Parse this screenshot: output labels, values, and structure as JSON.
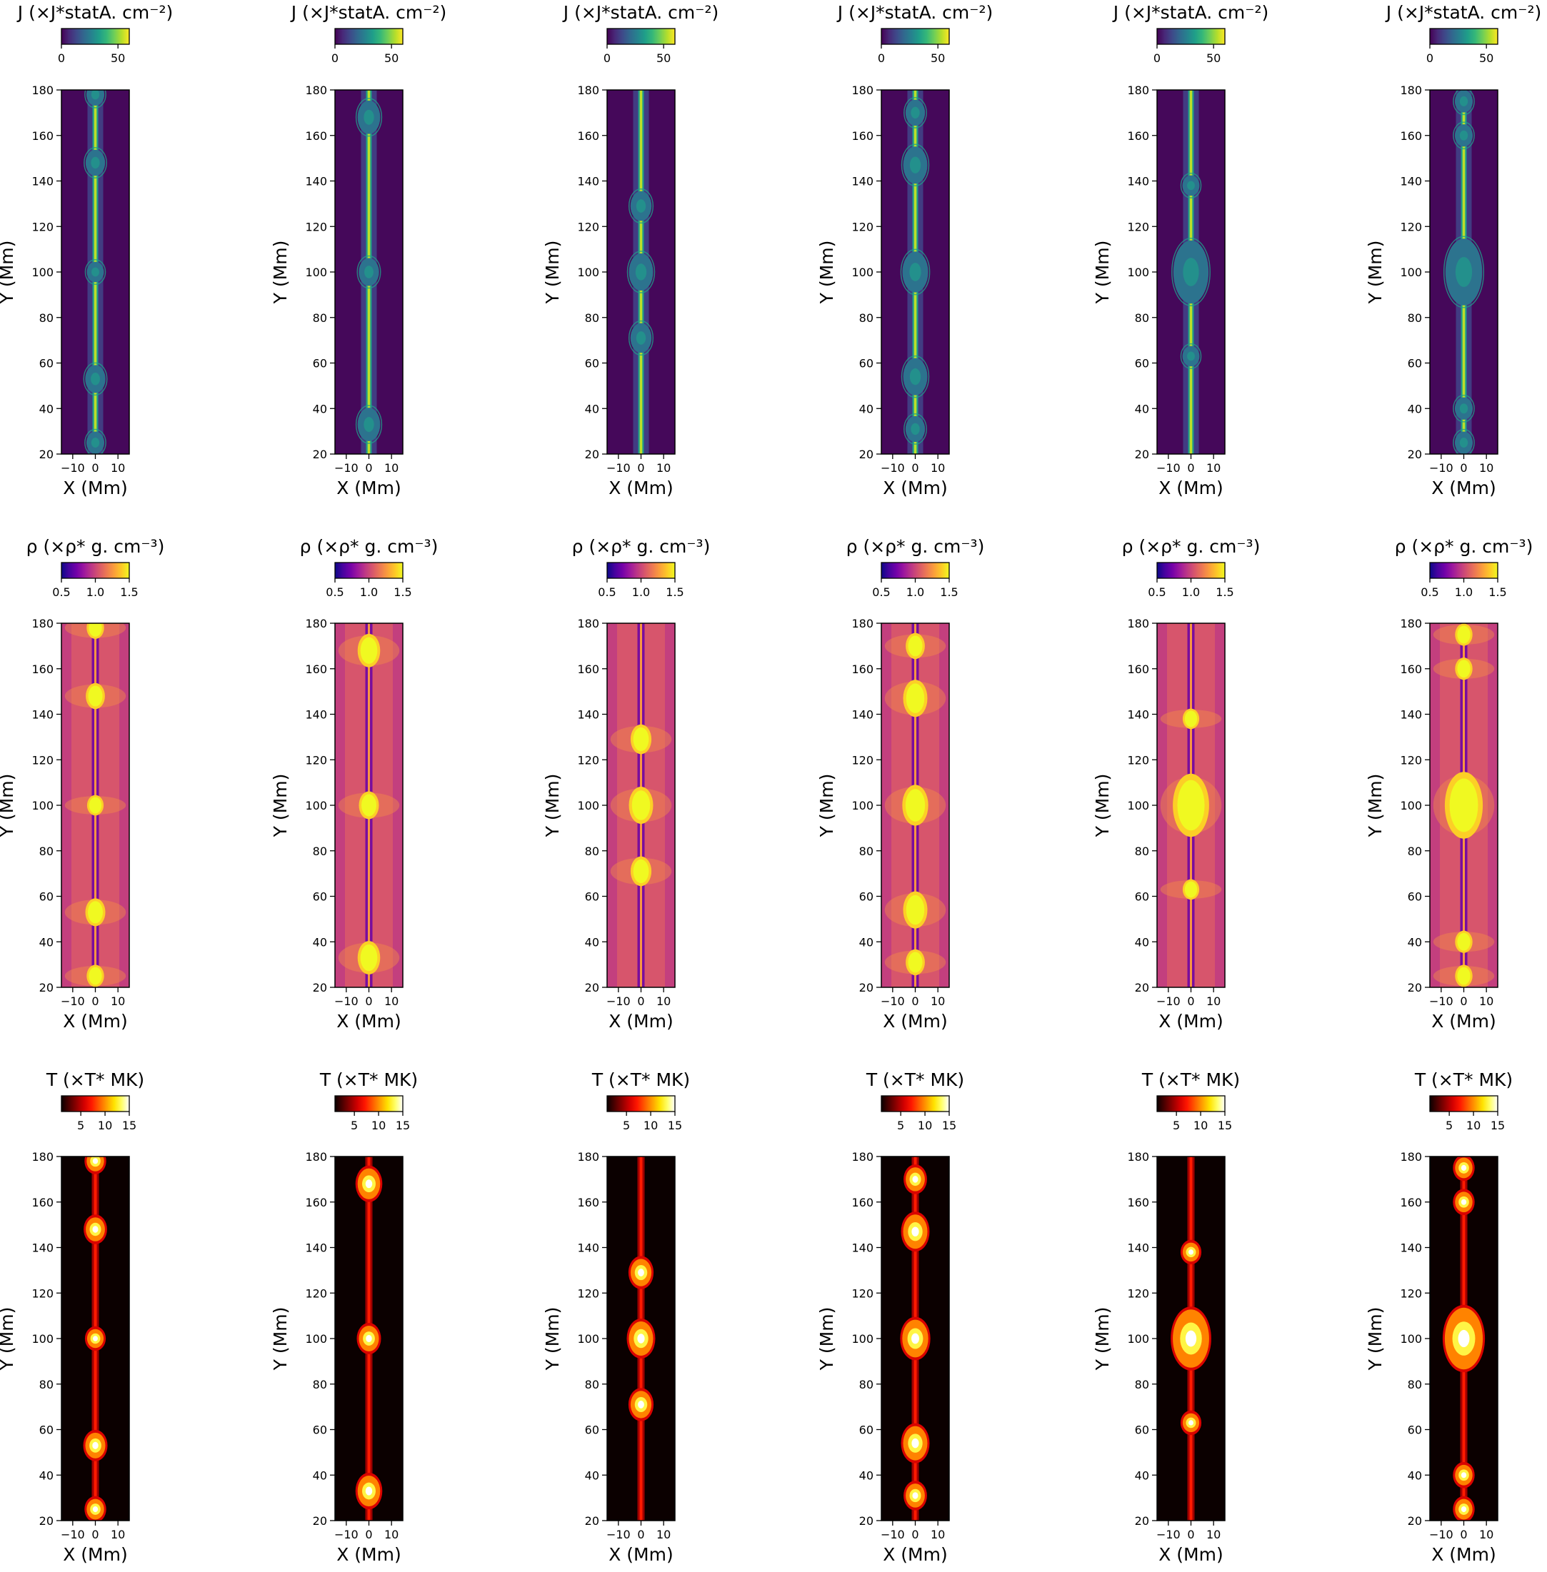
{
  "figure": {
    "rows": [
      {
        "variable": "J",
        "colorbar_label": "J (×J*statA. cm⁻²)",
        "colormap": "viridis",
        "colorbar_range": [
          0,
          60
        ],
        "colorbar_ticks": [
          "0",
          "50"
        ],
        "colorbar_tick_values": [
          0,
          50
        ]
      },
      {
        "variable": "rho",
        "colorbar_label": "ρ (×ρ* g. cm⁻³)",
        "colormap": "plasma",
        "colorbar_range": [
          0.5,
          1.5
        ],
        "colorbar_ticks": [
          "0.5",
          "1.0",
          "1.5"
        ],
        "colorbar_tick_values": [
          0.5,
          1.0,
          1.5
        ]
      },
      {
        "variable": "T",
        "colorbar_label": "T (×T* MK)",
        "colormap": "hot",
        "colorbar_range": [
          1,
          15
        ],
        "colorbar_ticks": [
          "5",
          "10",
          "15"
        ],
        "colorbar_tick_values": [
          5,
          10,
          15
        ]
      }
    ]
  },
  "chart_data": {
    "type": "heatmap",
    "layout": "3 rows x 6 columns of panels",
    "xlabel": "X (Mm)",
    "ylabel": "Y (Mm)",
    "xlim": [
      -15,
      15
    ],
    "ylim": [
      20,
      180
    ],
    "xticks": [
      -10,
      0,
      10
    ],
    "xtick_labels": [
      "−10",
      "0",
      "10"
    ],
    "yticks": [
      20,
      40,
      60,
      80,
      100,
      120,
      140,
      160,
      180
    ],
    "ytick_labels": [
      "20",
      "40",
      "60",
      "80",
      "100",
      "120",
      "140",
      "160",
      "180"
    ],
    "columns": [
      {
        "blobs": [
          {
            "y": 148,
            "size": 0.7
          },
          {
            "y": 100,
            "size": 0.55
          },
          {
            "y": 53,
            "size": 0.75
          },
          {
            "y": 178,
            "size": 0.6
          },
          {
            "y": 25,
            "size": 0.6
          }
        ]
      },
      {
        "blobs": [
          {
            "y": 168,
            "size": 0.9
          },
          {
            "y": 100,
            "size": 0.75
          },
          {
            "y": 33,
            "size": 0.9
          }
        ]
      },
      {
        "blobs": [
          {
            "y": 129,
            "size": 0.8
          },
          {
            "y": 100,
            "size": 1.0
          },
          {
            "y": 71,
            "size": 0.8
          }
        ]
      },
      {
        "blobs": [
          {
            "y": 170,
            "size": 0.7
          },
          {
            "y": 147,
            "size": 1.0
          },
          {
            "y": 100,
            "size": 1.1
          },
          {
            "y": 54,
            "size": 1.0
          },
          {
            "y": 31,
            "size": 0.7
          }
        ]
      },
      {
        "blobs": [
          {
            "y": 138,
            "size": 0.55
          },
          {
            "y": 100,
            "size": 1.7
          },
          {
            "y": 63,
            "size": 0.55
          }
        ]
      },
      {
        "blobs": [
          {
            "y": 175,
            "size": 0.6
          },
          {
            "y": 160,
            "size": 0.6
          },
          {
            "y": 100,
            "size": 1.8
          },
          {
            "y": 40,
            "size": 0.6
          },
          {
            "y": 25,
            "size": 0.6
          }
        ]
      }
    ]
  }
}
